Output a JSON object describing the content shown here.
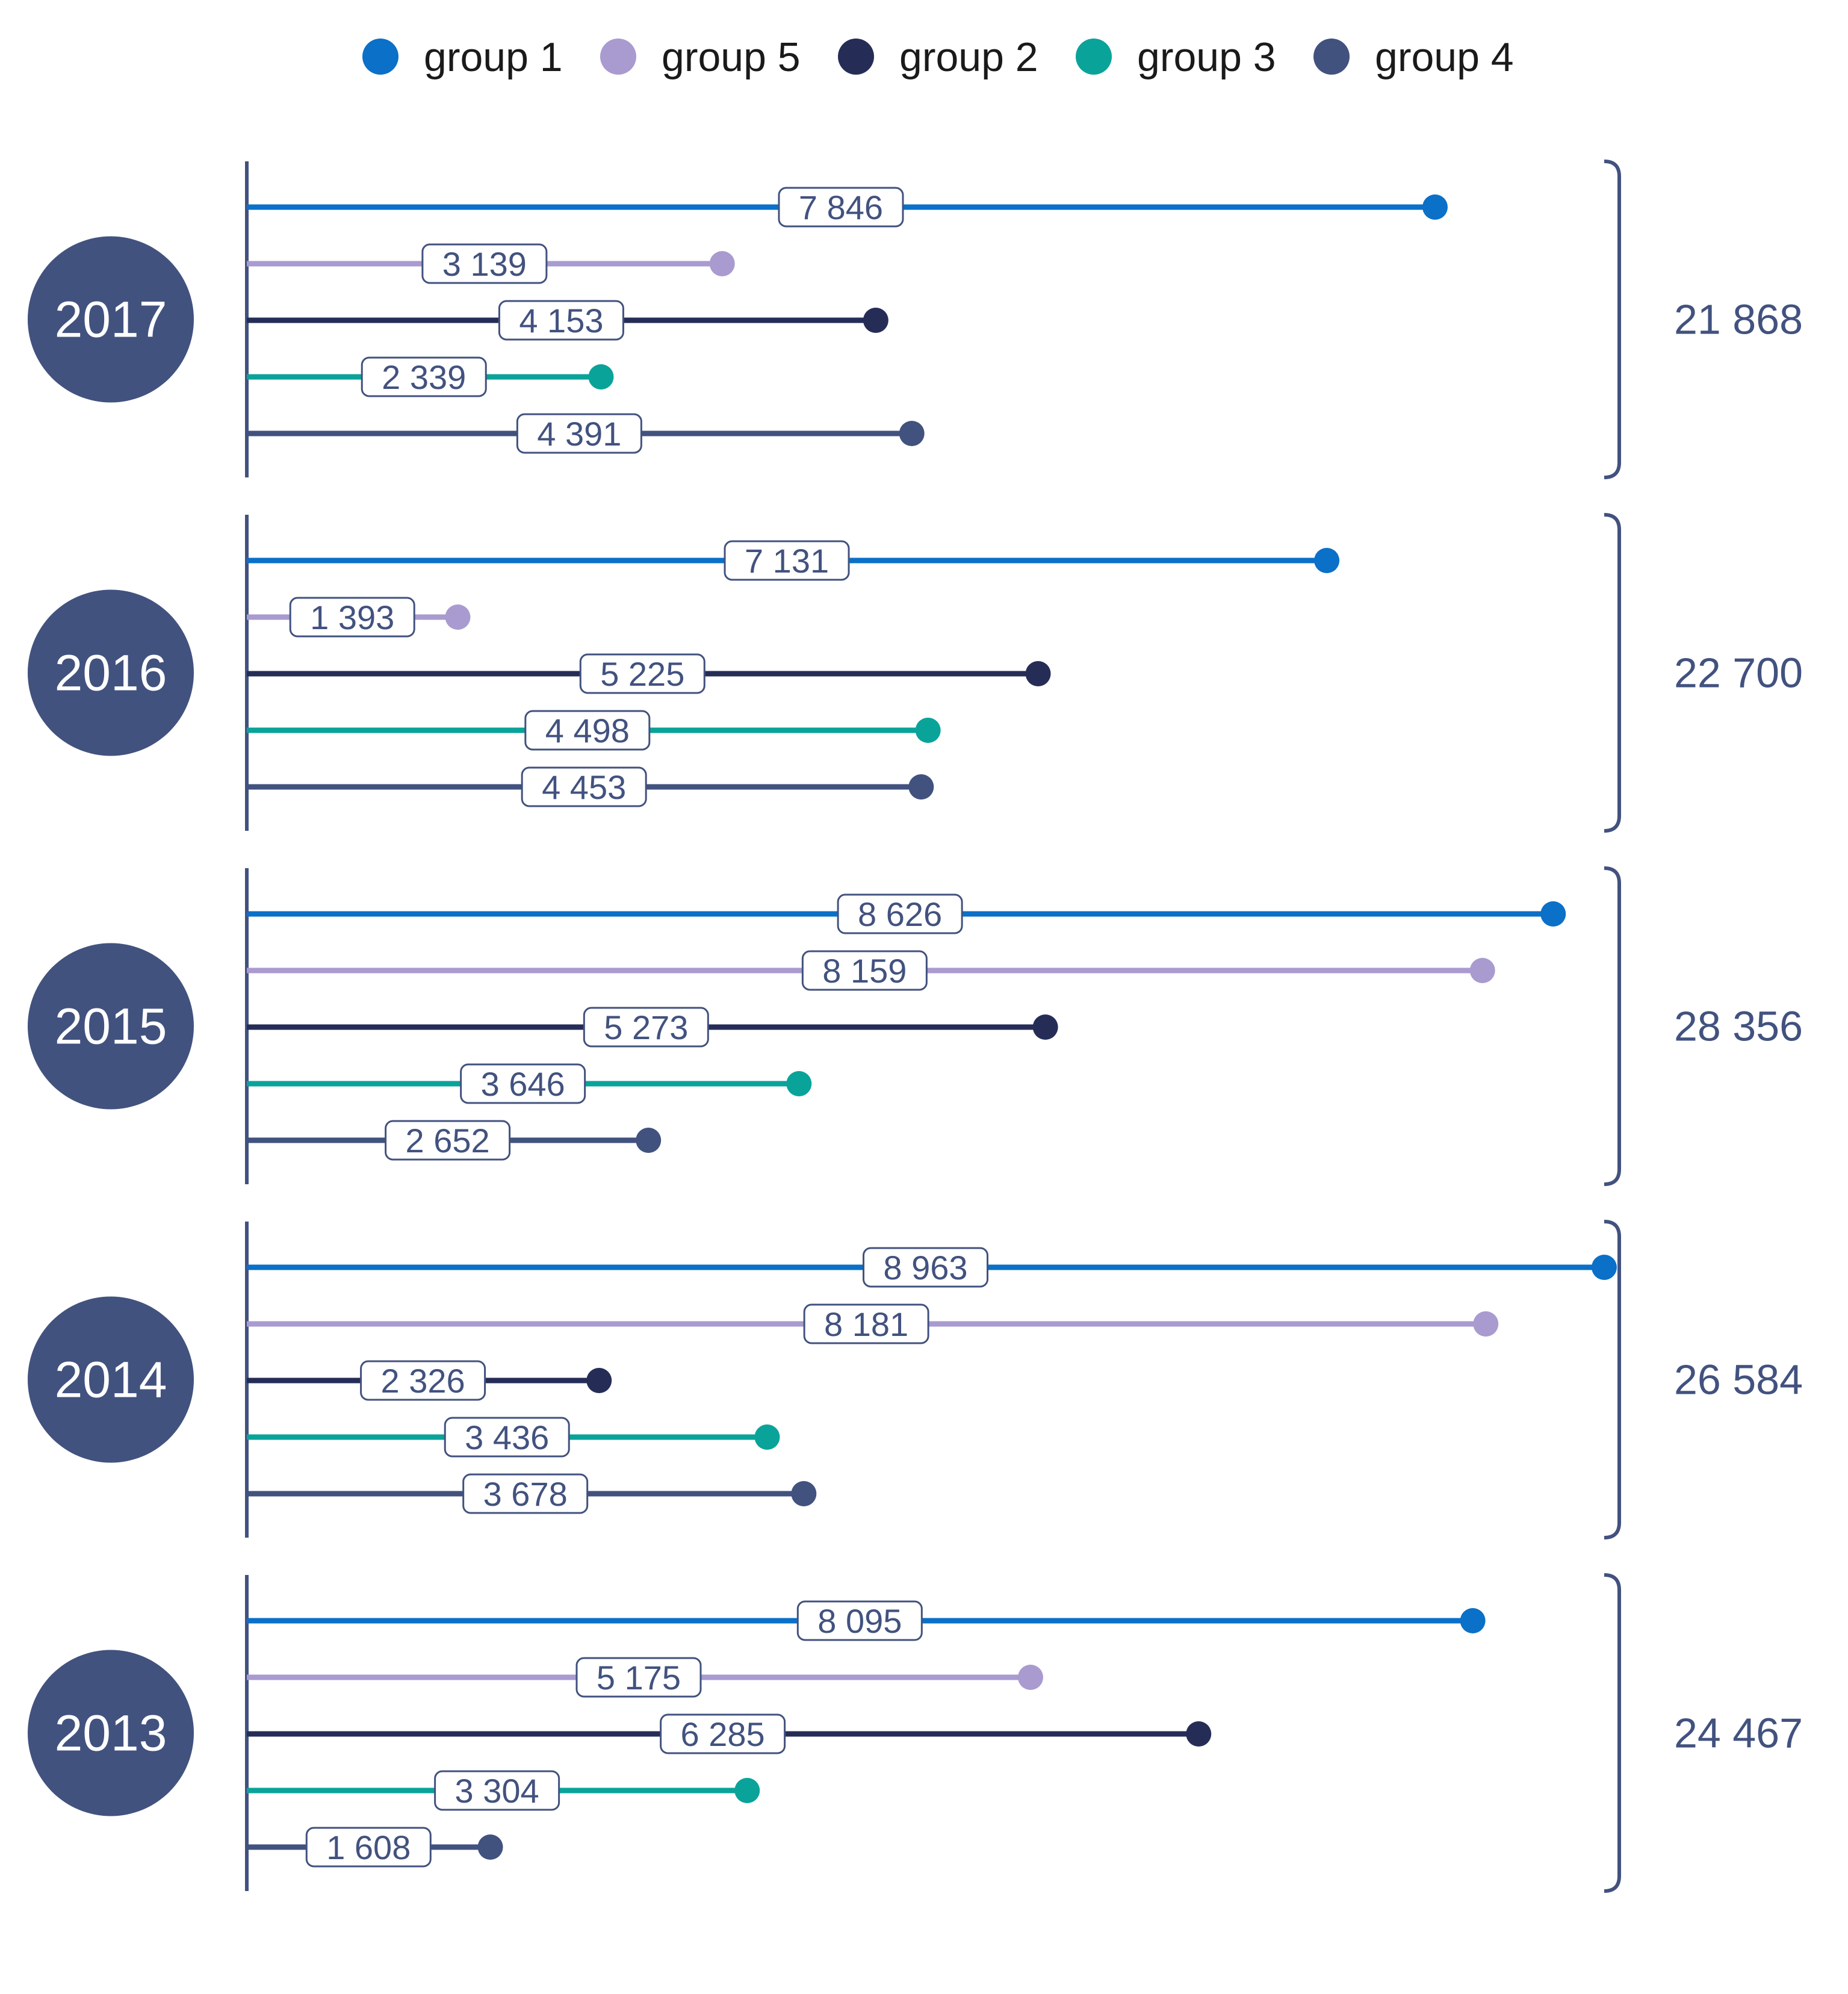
{
  "chart_data": {
    "type": "lollipop",
    "legend": {
      "placement": "top-center",
      "items": [
        {
          "name": "group 1",
          "color": "#0a70c8"
        },
        {
          "name": "group 5",
          "color": "#a99bd0"
        },
        {
          "name": "group 2",
          "color": "#252d57"
        },
        {
          "name": "group 3",
          "color": "#0aa39a"
        },
        {
          "name": "group 4",
          "color": "#42527f"
        }
      ]
    },
    "series_order": [
      "group 1",
      "group 5",
      "group 2",
      "group 3",
      "group 4"
    ],
    "x_range": [
      0,
      8963
    ],
    "groups": [
      {
        "year": "2017",
        "total": "21 868",
        "values": [
          7846,
          3139,
          4153,
          2339,
          4391
        ],
        "labels": [
          "7 846",
          "3 139",
          "4 153",
          "2 339",
          "4 391"
        ]
      },
      {
        "year": "2016",
        "total": "22 700",
        "values": [
          7131,
          1393,
          5225,
          4498,
          4453
        ],
        "labels": [
          "7 131",
          "1 393",
          "5 225",
          "4 498",
          "4 453"
        ]
      },
      {
        "year": "2015",
        "total": "28 356",
        "values": [
          8626,
          8159,
          5273,
          3646,
          2652
        ],
        "labels": [
          "8 626",
          "8 159",
          "5 273",
          "3 646",
          "2 652"
        ]
      },
      {
        "year": "2014",
        "total": "26 584",
        "values": [
          8963,
          8181,
          2326,
          3436,
          3678
        ],
        "labels": [
          "8 963",
          "8 181",
          "2 326",
          "3 436",
          "3 678"
        ]
      },
      {
        "year": "2013",
        "total": "24 467",
        "values": [
          8095,
          5175,
          6285,
          3304,
          1608
        ],
        "labels": [
          "8 095",
          "5 175",
          "6 285",
          "3 304",
          "1 608"
        ]
      }
    ],
    "colors": {
      "year_circle": "#42527f",
      "axis": "#42527f",
      "bracket": "#42527f",
      "total_text": "#42527f",
      "label_border": "#42527f"
    }
  }
}
